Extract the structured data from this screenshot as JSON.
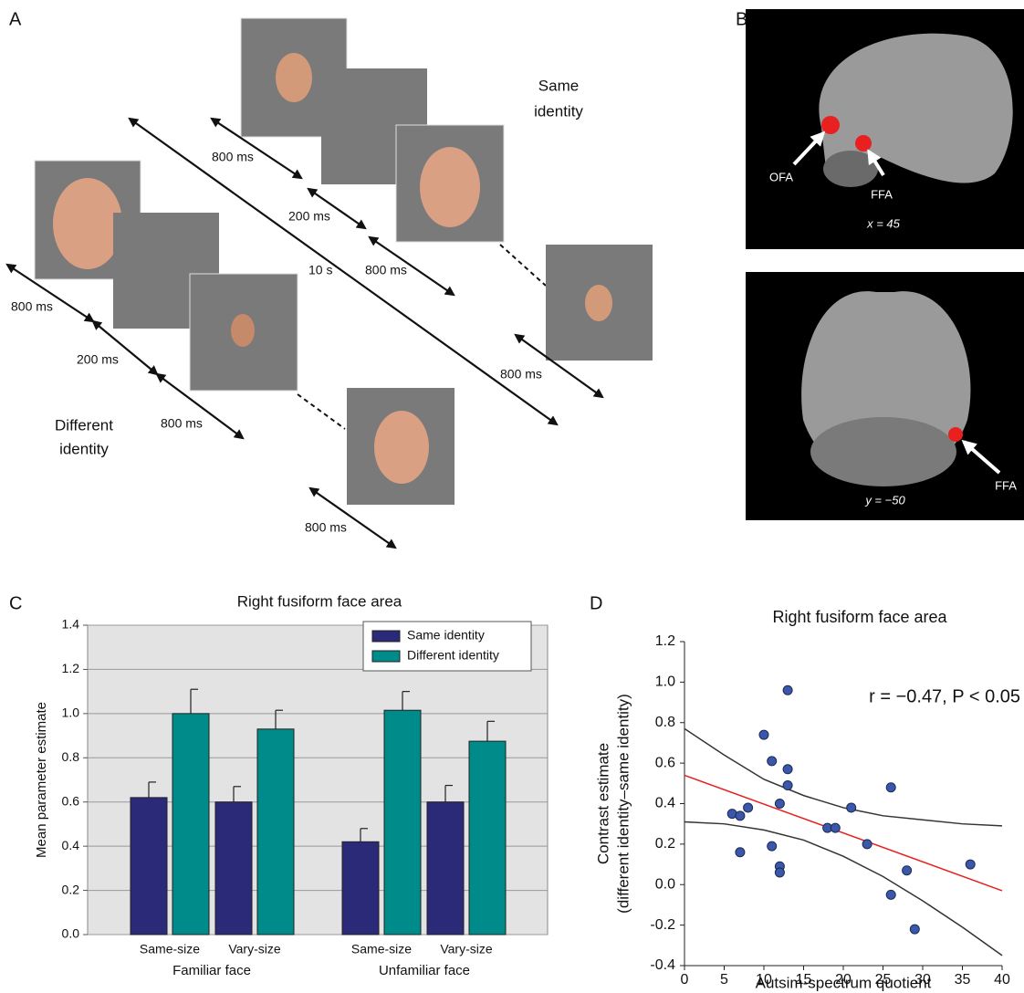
{
  "panel_a": {
    "label": "A",
    "same_identity": [
      "Same",
      "identity"
    ],
    "different_identity": [
      "Different",
      "identity"
    ],
    "timings": [
      "800 ms",
      "200 ms",
      "800 ms",
      "800 ms",
      "800 ms",
      "200 ms",
      "800 ms",
      "800 ms",
      "10 s"
    ]
  },
  "panel_b": {
    "label": "B",
    "labels": [
      "OFA",
      "FFA",
      "x = 45",
      "FFA",
      "y = −50"
    ]
  },
  "chart_data": [
    {
      "type": "bar",
      "panel_label": "C",
      "title": "Right fusiform face area",
      "ylabel": "Mean parameter estimate",
      "categories": [
        "Same-size",
        "Vary-size",
        "Same-size",
        "Vary-size"
      ],
      "groups": [
        "Familiar face",
        "Unfamiliar face"
      ],
      "series": [
        {
          "name": "Same identity",
          "color": "#2a2a78",
          "values": [
            0.62,
            0.6,
            0.42,
            0.6
          ],
          "errors": [
            0.07,
            0.07,
            0.06,
            0.075
          ]
        },
        {
          "name": "Different identity",
          "color": "#008b8b",
          "values": [
            1.0,
            0.93,
            1.015,
            0.875
          ],
          "errors": [
            0.11,
            0.085,
            0.085,
            0.09
          ]
        }
      ],
      "ylim": [
        0,
        1.4
      ],
      "yticks": [
        {
          "value": 0,
          "label": "0.0"
        },
        0.2,
        0.4,
        0.6,
        0.8,
        {
          "value": 1,
          "label": "1.0"
        },
        1.2,
        1.4
      ],
      "grid": true,
      "legend": "top-right"
    },
    {
      "type": "scatter",
      "panel_label": "D",
      "title": "Right fusiform face area",
      "xlabel": "Autsim-spectrum quotient",
      "ylabel": [
        "Contrast estimate",
        "(different identity–same identity)"
      ],
      "annotation": "r = −0.47, P < 0.05",
      "color": "#3b57a8",
      "x": [
        13,
        10,
        11,
        13,
        13,
        12,
        6,
        7,
        8,
        7,
        11,
        12,
        12,
        18,
        19,
        21,
        23,
        26,
        26,
        28,
        29,
        36
      ],
      "values": [
        0.96,
        0.74,
        0.61,
        0.57,
        0.49,
        0.4,
        0.35,
        0.34,
        0.38,
        0.16,
        0.19,
        0.09,
        0.06,
        0.28,
        0.28,
        0.38,
        0.2,
        0.48,
        -0.05,
        0.07,
        -0.22,
        0.1
      ],
      "fit": {
        "color": "#e82020",
        "x": [
          0,
          40
        ],
        "values": [
          0.54,
          -0.03
        ]
      },
      "ci_upper": {
        "color": "#333333",
        "x": [
          0,
          5,
          10,
          15,
          20,
          25,
          30,
          35,
          40
        ],
        "values": [
          0.77,
          0.64,
          0.52,
          0.44,
          0.38,
          0.34,
          0.32,
          0.3,
          0.29
        ]
      },
      "ci_lower": {
        "color": "#333333",
        "x": [
          0,
          5,
          10,
          15,
          20,
          25,
          30,
          35,
          40
        ],
        "values": [
          0.31,
          0.3,
          0.27,
          0.22,
          0.14,
          0.04,
          -0.08,
          -0.21,
          -0.35
        ]
      },
      "xlim": [
        0,
        40
      ],
      "xticks": [
        0,
        5,
        10,
        15,
        20,
        25,
        30,
        35,
        40
      ],
      "ylim": [
        -0.4,
        1.2
      ],
      "yticks": [
        -0.4,
        -0.2,
        {
          "value": 0,
          "label": "0.0"
        },
        0.2,
        0.4,
        0.6,
        0.8,
        {
          "value": 1,
          "label": "1.0"
        },
        1.2
      ],
      "grid": false
    }
  ]
}
